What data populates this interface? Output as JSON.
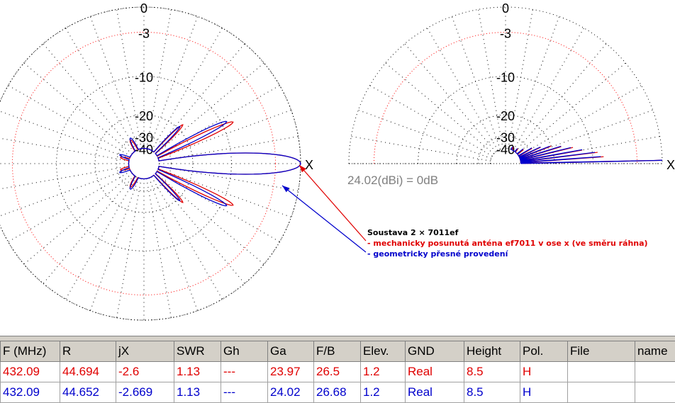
{
  "chart_data": [
    {
      "type": "polar",
      "view": "azimuth",
      "rings_db": [
        0,
        -3,
        -10,
        -20,
        -30,
        -40
      ],
      "axis_marker": "X",
      "series": [
        {
          "name": "mechanicky posunutá anténa ef7011 v ose x (ve směru ráhna)",
          "color": "#e00000",
          "lobes": [
            {
              "angle_deg": 0,
              "level_db": 0,
              "halfwidth_deg": 11
            },
            {
              "angle_deg": 25,
              "level_db": -8,
              "halfwidth_deg": 5
            },
            {
              "angle_deg": -25,
              "level_db": -8,
              "halfwidth_deg": 5
            },
            {
              "angle_deg": 45,
              "level_db": -18,
              "halfwidth_deg": 5
            },
            {
              "angle_deg": -45,
              "level_db": -18,
              "halfwidth_deg": 5
            },
            {
              "angle_deg": 120,
              "level_db": -30,
              "halfwidth_deg": 10
            },
            {
              "angle_deg": -120,
              "level_db": -30,
              "halfwidth_deg": 10
            },
            {
              "angle_deg": 165,
              "level_db": -32,
              "halfwidth_deg": 8
            },
            {
              "angle_deg": -165,
              "level_db": -32,
              "halfwidth_deg": 8
            }
          ]
        },
        {
          "name": "geometricky přesné provedení",
          "color": "#0000cc",
          "lobes": [
            {
              "angle_deg": 0,
              "level_db": 0,
              "halfwidth_deg": 11
            },
            {
              "angle_deg": 27,
              "level_db": -9,
              "halfwidth_deg": 5
            },
            {
              "angle_deg": -27,
              "level_db": -9,
              "halfwidth_deg": 5
            },
            {
              "angle_deg": 46,
              "level_db": -19,
              "halfwidth_deg": 5
            },
            {
              "angle_deg": -46,
              "level_db": -19,
              "halfwidth_deg": 5
            },
            {
              "angle_deg": 118,
              "level_db": -29,
              "halfwidth_deg": 10
            },
            {
              "angle_deg": -118,
              "level_db": -29,
              "halfwidth_deg": 10
            },
            {
              "angle_deg": 160,
              "level_db": -31,
              "halfwidth_deg": 8
            },
            {
              "angle_deg": -160,
              "level_db": -31,
              "halfwidth_deg": 8
            }
          ]
        }
      ]
    },
    {
      "type": "polar",
      "view": "elevation",
      "rings_db": [
        0,
        -3,
        -10,
        -20,
        -30,
        -40
      ],
      "axis_marker": "X",
      "reference": "24.02(dBi) = 0dB",
      "series": [
        {
          "name": "mechanicky posunutá anténa ef7011 v ose x (ve směru ráhna)",
          "color": "#e00000",
          "lobes": [
            {
              "elev_deg": 1.2,
              "level_db": 0
            },
            {
              "elev_deg": 4,
              "level_db": -8
            },
            {
              "elev_deg": 7,
              "level_db": -9
            },
            {
              "elev_deg": 10,
              "level_db": -12
            },
            {
              "elev_deg": 13.5,
              "level_db": -14
            },
            {
              "elev_deg": 17,
              "level_db": -17
            },
            {
              "elev_deg": 21,
              "level_db": -20
            },
            {
              "elev_deg": 25,
              "level_db": -24
            },
            {
              "elev_deg": 30,
              "level_db": -28
            },
            {
              "elev_deg": 38,
              "level_db": -33
            },
            {
              "elev_deg": 50,
              "level_db": -36
            },
            {
              "elev_deg": 65,
              "level_db": -37
            }
          ]
        },
        {
          "name": "geometricky přesné provedení",
          "color": "#0000cc",
          "lobes": [
            {
              "elev_deg": 1.2,
              "level_db": 0
            },
            {
              "elev_deg": 4.2,
              "level_db": -8.5
            },
            {
              "elev_deg": 7.2,
              "level_db": -9.5
            },
            {
              "elev_deg": 10.3,
              "level_db": -12
            },
            {
              "elev_deg": 13.8,
              "level_db": -14.5
            },
            {
              "elev_deg": 17.4,
              "level_db": -17
            },
            {
              "elev_deg": 21.5,
              "level_db": -20.5
            },
            {
              "elev_deg": 25.5,
              "level_db": -24
            },
            {
              "elev_deg": 31,
              "level_db": -28
            },
            {
              "elev_deg": 40,
              "level_db": -33
            },
            {
              "elev_deg": 52,
              "level_db": -36
            },
            {
              "elev_deg": 68,
              "level_db": -37
            }
          ]
        }
      ]
    }
  ],
  "annotation": {
    "title": "Soustava 2 × 7011ef",
    "line_red": "- mechanicky posunutá anténa ef7011 v ose x (ve směru ráhna)",
    "line_blue": "- geometricky přesné provedení"
  },
  "colors": {
    "red": "#e00000",
    "blue": "#0000cc",
    "grid": "#000000",
    "gridRed": "#ff0000"
  },
  "table": {
    "headers": [
      "F (MHz)",
      "R",
      "jX",
      "SWR",
      "Gh",
      "Ga",
      "F/B",
      "Elev.",
      "GND",
      "Height",
      "Pol.",
      "File",
      "name"
    ],
    "rows": [
      {
        "color": "#e00000",
        "cells": [
          "432.09",
          "44.694",
          "-2.6",
          "1.13",
          "---",
          "23.97",
          "26.5",
          "1.2",
          "Real",
          "8.5",
          "H",
          "",
          ""
        ]
      },
      {
        "color": "#0000cc",
        "cells": [
          "432.09",
          "44.652",
          "-2.669",
          "1.13",
          "---",
          "24.02",
          "26.68",
          "1.2",
          "Real",
          "8.5",
          "H",
          "",
          ""
        ]
      }
    ]
  }
}
